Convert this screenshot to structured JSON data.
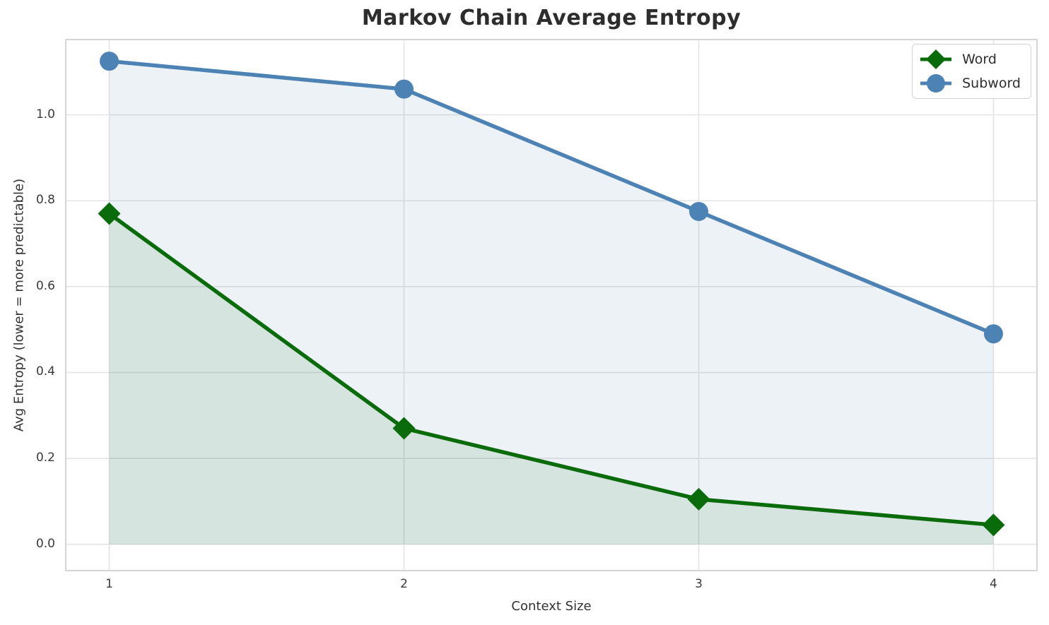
{
  "chart_data": {
    "type": "line",
    "title": "Markov Chain Average Entropy",
    "xlabel": "Context Size",
    "ylabel": "Avg Entropy (lower = more predictable)",
    "x": [
      1,
      2,
      3,
      4
    ],
    "series": [
      {
        "name": "Word",
        "color": "#0a6b0a",
        "marker": "diamond",
        "values": [
          0.77,
          0.27,
          0.105,
          0.045
        ]
      },
      {
        "name": "Subword",
        "color": "#4d82b4",
        "marker": "circle",
        "values": [
          1.125,
          1.06,
          0.775,
          0.49
        ]
      }
    ],
    "fill_to_zero": true,
    "fill_opacity": 0.1,
    "xticks": {
      "values": [
        1,
        2,
        3,
        4
      ],
      "labels": [
        "1",
        "2",
        "3",
        "4"
      ]
    },
    "yticks": {
      "values": [
        0,
        0.2,
        0.4,
        0.6,
        0.8,
        1.0
      ],
      "labels": [
        "0.0",
        "0.2",
        "0.4",
        "0.6",
        "0.8",
        "1.0"
      ]
    },
    "xlim": [
      0.85,
      4.15
    ],
    "ylim": [
      -0.063,
      1.177
    ],
    "grid": true,
    "legend": {
      "position": "upper right",
      "entries": [
        "Word",
        "Subword"
      ]
    },
    "colors": {
      "grid": "#e4e4e4",
      "spine": "#d5d5d5",
      "tick_text": "#3a3a3a",
      "title_text": "#2d2d2d"
    }
  }
}
